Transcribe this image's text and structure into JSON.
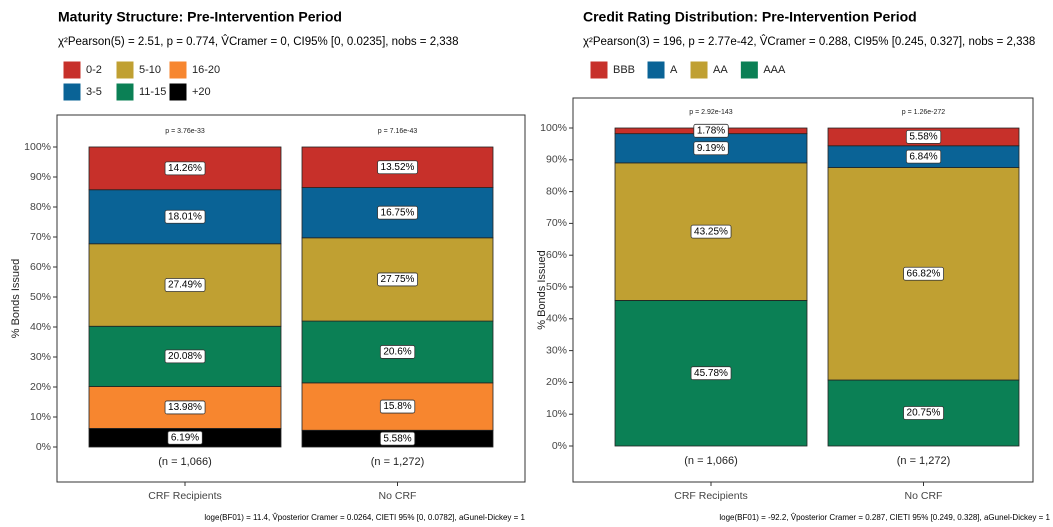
{
  "chart_data": [
    {
      "type": "bar",
      "stacked": true,
      "title": "Maturity Structure: Pre-Intervention Period",
      "subtitle": "χ²Pearson(5) = 2.51, p = 0.774, V̂Cramer = 0, CI95% [0, 0.0235], nobs = 2,338",
      "y_label": "% Bonds Issued",
      "categories": [
        "CRF Recipients",
        "No CRF"
      ],
      "annotations": [
        "p = 3.76e-33",
        "p = 7.16e-43"
      ],
      "counts": [
        "(n = 1,066)",
        "(n = 1,272)"
      ],
      "caption": "loge(BF01) = 11.4, V̂posterior Cramer = 0.0264, CIETI 95% [0, 0.0782], aGunel-Dickey = 1",
      "series": [
        {
          "name": "0-2",
          "color": "#c7302a",
          "values": [
            14.26,
            13.52
          ],
          "value_labels": [
            "14.26%",
            "13.52%"
          ]
        },
        {
          "name": "3-5",
          "color": "#0a6396",
          "values": [
            18.01,
            16.75
          ],
          "value_labels": [
            "18.01%",
            "16.75%"
          ]
        },
        {
          "name": "5-10",
          "color": "#c0a032",
          "values": [
            27.49,
            27.75
          ],
          "value_labels": [
            "27.49%",
            "27.75%"
          ]
        },
        {
          "name": "11-15",
          "color": "#0b8055",
          "values": [
            20.08,
            20.6
          ],
          "value_labels": [
            "20.08%",
            "20.6%"
          ]
        },
        {
          "name": "16-20",
          "color": "#f7862f",
          "values": [
            13.98,
            15.8
          ],
          "value_labels": [
            "13.98%",
            "15.8%"
          ]
        },
        {
          "name": "+20",
          "color": "#000000",
          "values": [
            6.19,
            5.58
          ],
          "value_labels": [
            "6.19%",
            "5.58%"
          ]
        }
      ],
      "ylim": [
        0,
        100
      ],
      "yticks": [
        {
          "value": 0,
          "label": "0%"
        },
        {
          "value": 10,
          "label": "10%"
        },
        {
          "value": 20,
          "label": "20%"
        },
        {
          "value": 30,
          "label": "30%"
        },
        {
          "value": 40,
          "label": "40%"
        },
        {
          "value": 50,
          "label": "50%"
        },
        {
          "value": 60,
          "label": "60%"
        },
        {
          "value": 70,
          "label": "70%"
        },
        {
          "value": 80,
          "label": "80%"
        },
        {
          "value": 90,
          "label": "90%"
        },
        {
          "value": 100,
          "label": "100%"
        }
      ],
      "legend": "top-left"
    },
    {
      "type": "bar",
      "stacked": true,
      "title": "Credit Rating Distribution: Pre-Intervention Period",
      "subtitle": "χ²Pearson(3) = 196, p = 2.77e-42, V̂Cramer = 0.288, CI95% [0.245, 0.327], nobs = 2,338",
      "y_label": "% Bonds Issued",
      "categories": [
        "CRF Recipients",
        "No CRF"
      ],
      "annotations": [
        "p = 2.92e-143",
        "p = 1.26e-272"
      ],
      "counts": [
        "(n = 1,066)",
        "(n = 1,272)"
      ],
      "caption": "loge(BF01) = -92.2, V̂posterior Cramer = 0.287, CIETI 95% [0.249, 0.328], aGunel-Dickey = 1",
      "series": [
        {
          "name": "BBB",
          "color": "#c7302a",
          "values": [
            1.78,
            5.58
          ],
          "value_labels": [
            "1.78%",
            "5.58%"
          ]
        },
        {
          "name": "A",
          "color": "#0a6396",
          "values": [
            9.19,
            6.84
          ],
          "value_labels": [
            "9.19%",
            "6.84%"
          ]
        },
        {
          "name": "AA",
          "color": "#c0a032",
          "values": [
            43.25,
            66.82
          ],
          "value_labels": [
            "43.25%",
            "66.82%"
          ]
        },
        {
          "name": "AAA",
          "color": "#0b8055",
          "values": [
            45.78,
            20.75
          ],
          "value_labels": [
            "45.78%",
            "20.75%"
          ]
        }
      ],
      "ylim": [
        0,
        100
      ],
      "yticks": [
        {
          "value": 0,
          "label": "0%"
        },
        {
          "value": 10,
          "label": "10%"
        },
        {
          "value": 20,
          "label": "20%"
        },
        {
          "value": 30,
          "label": "30%"
        },
        {
          "value": 40,
          "label": "40%"
        },
        {
          "value": 50,
          "label": "50%"
        },
        {
          "value": 60,
          "label": "60%"
        },
        {
          "value": 70,
          "label": "70%"
        },
        {
          "value": 80,
          "label": "80%"
        },
        {
          "value": 90,
          "label": "90%"
        },
        {
          "value": 100,
          "label": "100%"
        }
      ],
      "legend": "top-left"
    }
  ]
}
